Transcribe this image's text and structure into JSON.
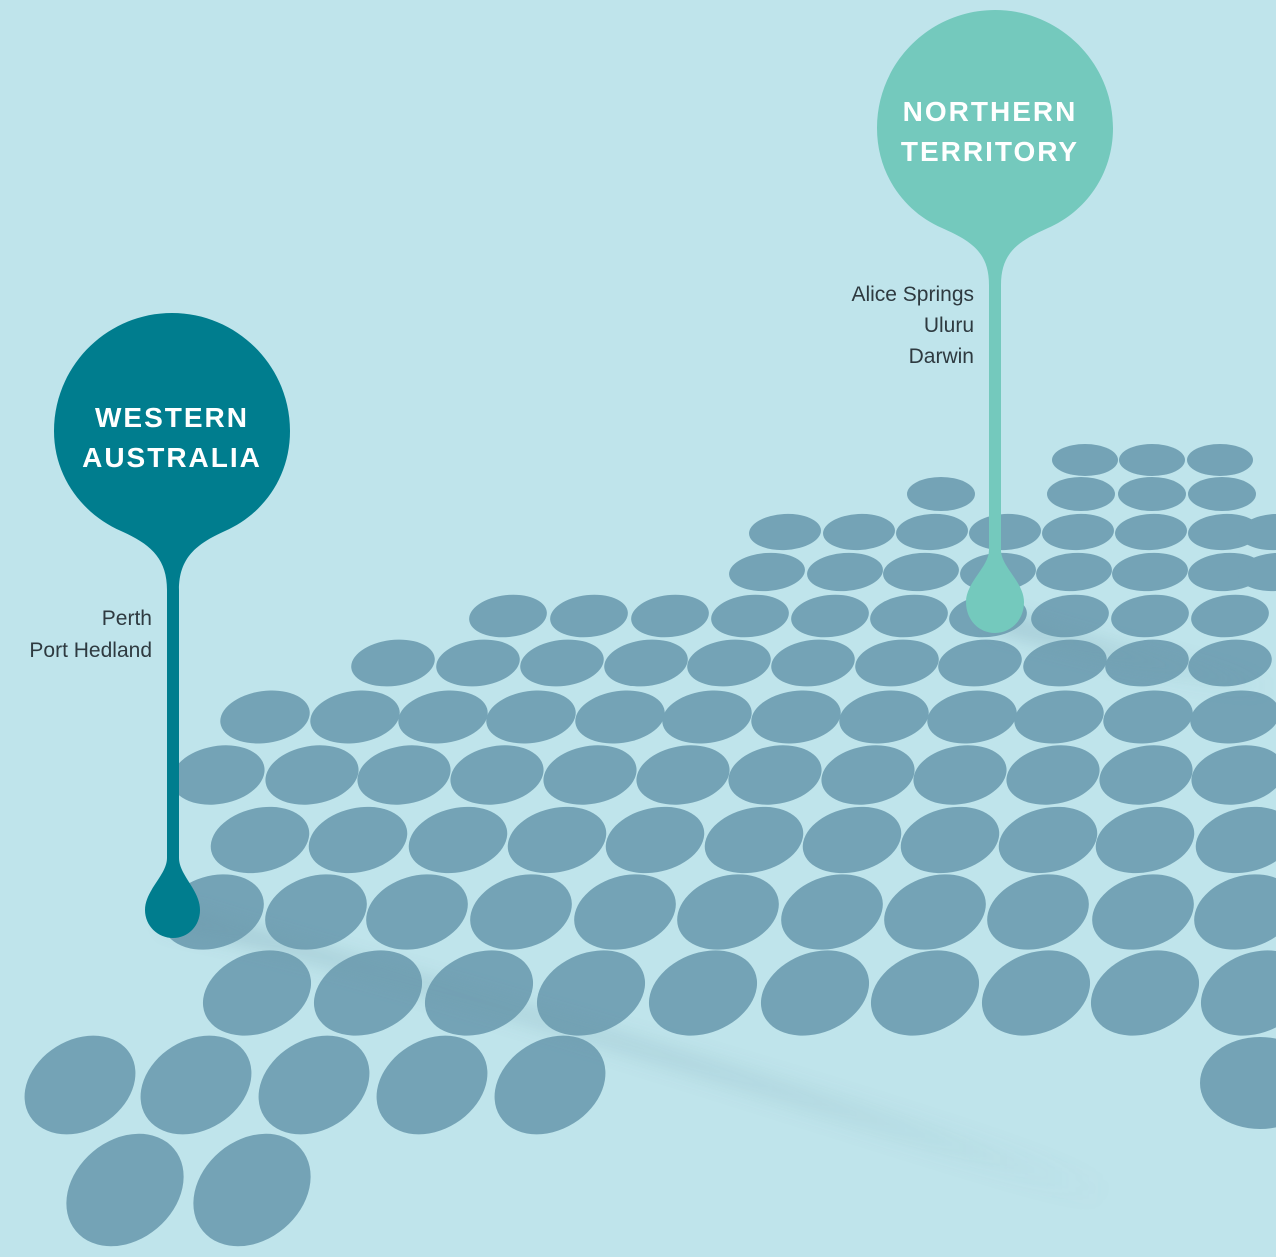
{
  "map": {
    "background": "#bfe4eb",
    "dot_color": "#74a3b6"
  },
  "pins": [
    {
      "id": "western-australia",
      "line1": "WESTERN",
      "line2": "AUSTRALIA",
      "color": "#007d8e",
      "cities": [
        "Perth",
        "Port Hedland"
      ]
    },
    {
      "id": "northern-territory",
      "line1": "NORTHERN",
      "line2": "TERRITORY",
      "color": "#74c9bd",
      "cities": [
        "Alice Springs",
        "Uluru",
        "Darwin"
      ]
    }
  ]
}
